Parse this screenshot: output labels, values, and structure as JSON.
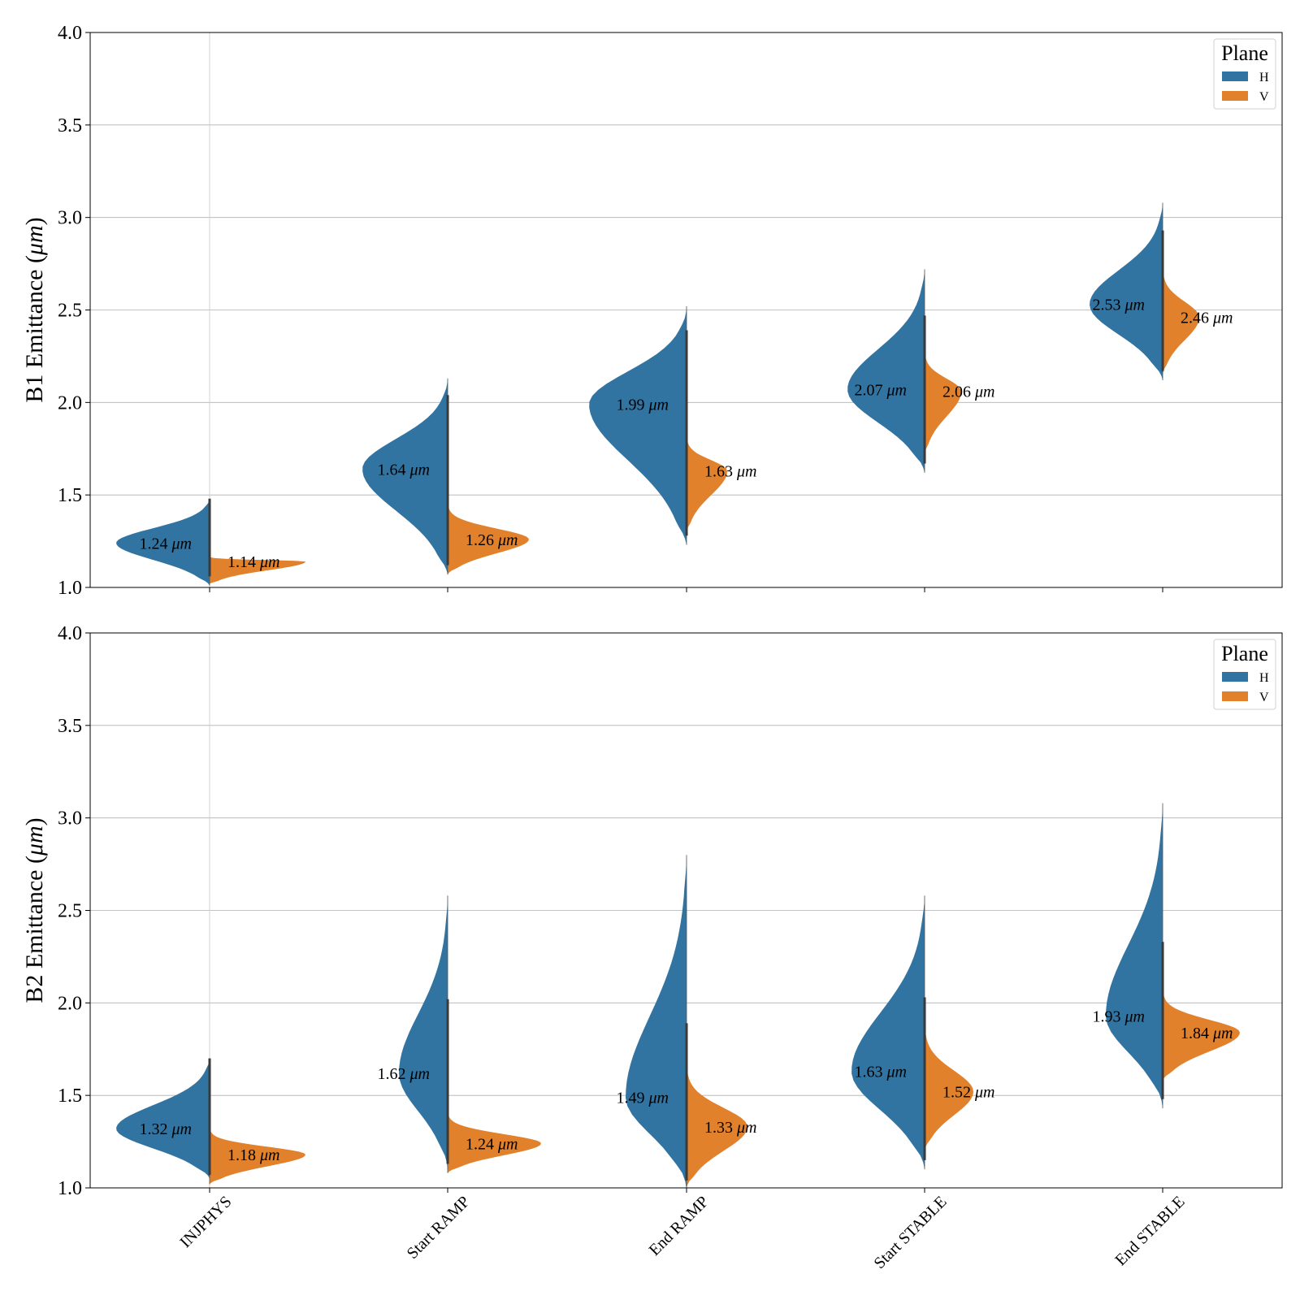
{
  "chart_data": [
    {
      "type": "violin",
      "split": true,
      "ylabel_prefix": "B1 Emittance (",
      "ylabel_unit": "μm",
      "ylabel_suffix": ")",
      "ylim": [
        1.0,
        4.0
      ],
      "yticks": [
        "1.0",
        "1.5",
        "2.0",
        "2.5",
        "3.0",
        "3.5",
        "4.0"
      ],
      "grid": true,
      "legend": {
        "title": "Plane",
        "placement": "top-right",
        "entries": [
          "H",
          "V"
        ]
      },
      "categories": [
        "INJPHYS",
        "Start RAMP",
        "End RAMP",
        "Start STABLE",
        "End STABLE"
      ],
      "series": [
        {
          "name": "H",
          "color": "#3274a1",
          "medians": [
            1.24,
            1.64,
            1.99,
            2.07,
            2.53
          ],
          "labels": [
            "1.24",
            "1.64",
            "1.99",
            "2.07",
            "2.53"
          ],
          "ranges": [
            [
              1.01,
              1.48
            ],
            [
              1.07,
              2.13
            ],
            [
              1.23,
              2.52
            ],
            [
              1.62,
              2.72
            ],
            [
              2.12,
              3.08
            ]
          ]
        },
        {
          "name": "V",
          "color": "#e1812c",
          "medians": [
            1.14,
            1.26,
            1.63,
            2.06,
            2.46
          ],
          "labels": [
            "1.14",
            "1.26",
            "1.63",
            "2.06",
            "2.46"
          ],
          "ranges": [
            [
              1.02,
              1.17
            ],
            [
              1.07,
              1.48
            ],
            [
              1.3,
              1.85
            ],
            [
              1.72,
              2.32
            ],
            [
              2.15,
              2.78
            ]
          ]
        }
      ],
      "annotation_unit": "μm"
    },
    {
      "type": "violin",
      "split": true,
      "ylabel_prefix": "B2 Emittance (",
      "ylabel_unit": "μm",
      "ylabel_suffix": ")",
      "ylim": [
        1.0,
        4.0
      ],
      "yticks": [
        "1.0",
        "1.5",
        "2.0",
        "2.5",
        "3.0",
        "3.5",
        "4.0"
      ],
      "grid": true,
      "legend": {
        "title": "Plane",
        "placement": "top-right",
        "entries": [
          "H",
          "V"
        ]
      },
      "categories": [
        "INJPHYS",
        "Start RAMP",
        "End RAMP",
        "Start STABLE",
        "End STABLE"
      ],
      "series": [
        {
          "name": "H",
          "color": "#3274a1",
          "medians": [
            1.32,
            1.62,
            1.49,
            1.63,
            1.93
          ],
          "labels": [
            "1.32",
            "1.62",
            "1.49",
            "1.63",
            "1.93"
          ],
          "ranges": [
            [
              1.05,
              1.7
            ],
            [
              1.1,
              2.58
            ],
            [
              0.99,
              2.8
            ],
            [
              1.1,
              2.58
            ],
            [
              1.43,
              3.08
            ]
          ]
        },
        {
          "name": "V",
          "color": "#e1812c",
          "medians": [
            1.18,
            1.24,
            1.33,
            1.52,
            1.84
          ],
          "labels": [
            "1.18",
            "1.24",
            "1.33",
            "1.52",
            "1.84"
          ],
          "ranges": [
            [
              1.02,
              1.34
            ],
            [
              1.08,
              1.43
            ],
            [
              1.0,
              1.72
            ],
            [
              1.2,
              1.95
            ],
            [
              1.58,
              2.1
            ]
          ]
        }
      ],
      "annotation_unit": "μm"
    }
  ]
}
